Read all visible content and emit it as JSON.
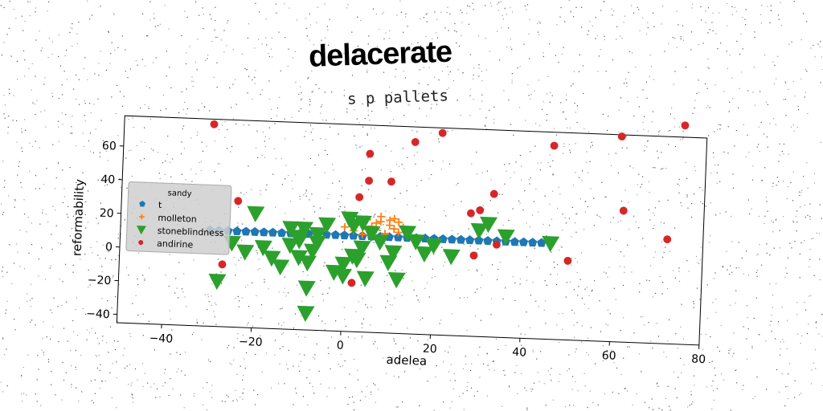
{
  "header": {
    "title": "delacerate",
    "subtitle": "s p pallets"
  },
  "chart_data": {
    "type": "scatter",
    "title": "s p pallets",
    "xlabel": "adelea",
    "ylabel": "reformability",
    "xlim": [
      -50,
      80
    ],
    "ylim": [
      -45,
      78
    ],
    "xticks": [
      -40,
      -20,
      0,
      20,
      40,
      60,
      80
    ],
    "yticks": [
      -40,
      -20,
      0,
      20,
      40,
      60
    ],
    "grid": false,
    "legend": {
      "title": "sandy",
      "position": "center-left"
    },
    "series": [
      {
        "name": "t",
        "marker": "pentagon",
        "color": "#1f77b4",
        "x": [
          -30,
          -28,
          -26,
          -24,
          -22,
          -20,
          -18,
          -16,
          -14,
          -12,
          -10,
          -8,
          -6,
          -4,
          -2,
          0,
          2,
          4,
          6,
          8,
          10,
          12,
          14,
          16,
          18,
          20,
          22,
          24,
          26,
          28,
          30,
          32,
          34,
          36,
          38,
          40,
          42,
          44
        ],
        "y": [
          12,
          12,
          12,
          12,
          12,
          12,
          12,
          12,
          12,
          12,
          12,
          12,
          12,
          12,
          12,
          12,
          12,
          12,
          12,
          12,
          12,
          12,
          12,
          12,
          12,
          12,
          12,
          12,
          12,
          12,
          12,
          12,
          12,
          12,
          12,
          12,
          12,
          12
        ]
      },
      {
        "name": "molleton",
        "marker": "plus",
        "color": "#ff7f0e",
        "x": [
          0,
          2,
          3,
          4,
          5,
          6,
          7,
          8,
          9,
          10,
          11,
          12,
          13,
          8,
          6,
          10,
          4,
          9,
          7,
          12,
          5,
          11
        ],
        "y": [
          17,
          15,
          20,
          13,
          22,
          18,
          16,
          21,
          14,
          19,
          17,
          15,
          18,
          24,
          12,
          22,
          19,
          13,
          20,
          21,
          16,
          23
        ]
      },
      {
        "name": "stoneblindness",
        "marker": "triangle-down",
        "color": "#2ca02c",
        "x": [
          -28,
          -25,
          -22,
          -20,
          -18,
          -16,
          -14,
          -12,
          -12,
          -10,
          -10,
          -10,
          -9,
          -8,
          -8,
          -8,
          -7,
          -6,
          -6,
          -4,
          -2,
          0,
          0,
          1,
          2,
          2,
          3,
          4,
          4,
          5,
          6,
          8,
          10,
          11,
          12,
          14,
          16,
          18,
          20,
          24,
          30,
          32,
          36,
          46
        ],
        "y": [
          -18,
          5,
          0,
          23,
          3,
          -3,
          -8,
          15,
          5,
          -2,
          8,
          10,
          15,
          -20,
          -35,
          -5,
          2,
          7,
          12,
          18,
          -10,
          -12,
          -5,
          22,
          0,
          18,
          -2,
          5,
          20,
          -13,
          14,
          9,
          -3,
          3,
          -13,
          15,
          10,
          3,
          8,
          2,
          18,
          22,
          15,
          12
        ]
      },
      {
        "name": "andirine",
        "marker": "circle",
        "color": "#d62728",
        "x": [
          -30,
          -27,
          -24,
          2,
          3,
          5,
          5,
          10,
          15,
          21,
          28,
          29,
          30,
          33,
          34,
          46,
          50,
          61,
          62,
          72,
          75
        ],
        "y": [
          75,
          -8,
          30,
          -16,
          35,
          45,
          61,
          45,
          69,
          75,
          28,
          3,
          30,
          40,
          10,
          70,
          2,
          77,
          33,
          17,
          85
        ]
      }
    ]
  }
}
